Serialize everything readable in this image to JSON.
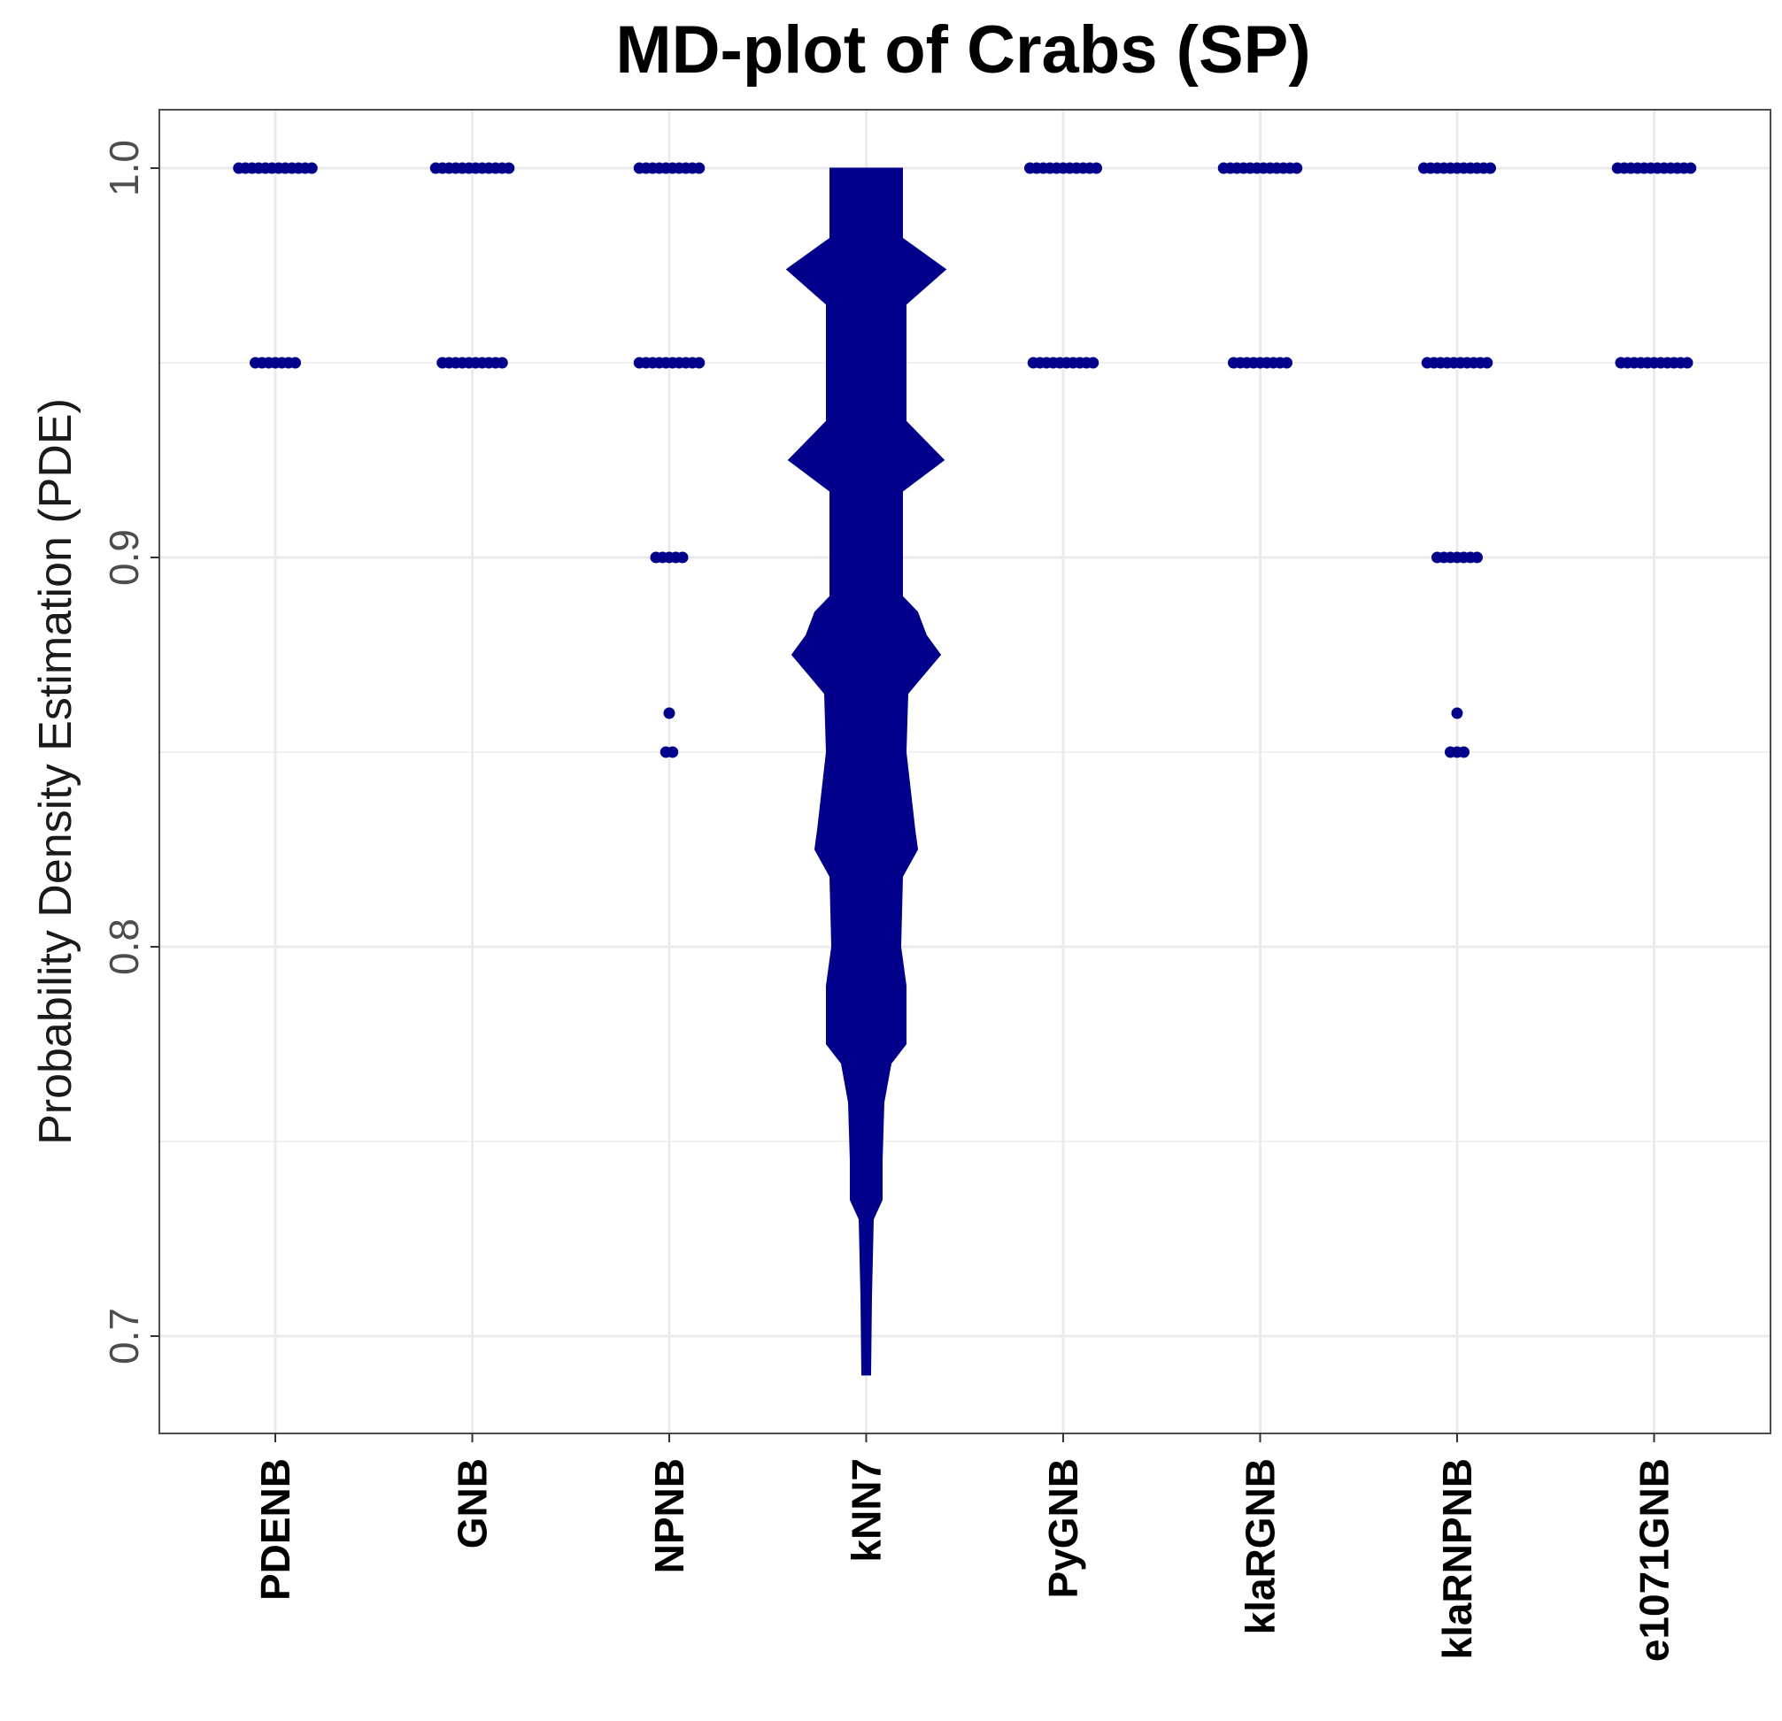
{
  "chart_data": {
    "type": "scatter",
    "title": "MD-plot of Crabs (SP)",
    "xlabel": "",
    "ylabel": "Probability Density Estimation (PDE)",
    "categories": [
      "PDENB",
      "GNB",
      "NPNB",
      "kNN7",
      "PyGNB",
      "klaRGNB",
      "klaRNPNB",
      "e1071GNB"
    ],
    "ylim": [
      0.675,
      1.015
    ],
    "yticks": [
      0.7,
      0.8,
      0.9,
      1.0
    ],
    "ytick_labels": [
      "0.7",
      "0.8",
      "0.9",
      "1.0"
    ],
    "grid": true,
    "legend": "none",
    "color": "#00008B",
    "series": [
      {
        "category": "PDENB",
        "points": [
          {
            "y": 1.0,
            "count": 12
          },
          {
            "y": 0.95,
            "count": 7
          }
        ]
      },
      {
        "category": "GNB",
        "points": [
          {
            "y": 1.0,
            "count": 12
          },
          {
            "y": 0.95,
            "count": 10
          }
        ]
      },
      {
        "category": "NPNB",
        "points": [
          {
            "y": 1.0,
            "count": 10
          },
          {
            "y": 0.95,
            "count": 10
          },
          {
            "y": 0.9,
            "count": 5
          },
          {
            "y": 0.86,
            "count": 1
          },
          {
            "y": 0.85,
            "count": 2
          }
        ]
      },
      {
        "category": "kNN7",
        "violin": [
          {
            "y": 1.0,
            "w": 0.41
          },
          {
            "y": 0.982,
            "w": 0.41
          },
          {
            "y": 0.974,
            "w": 0.9
          },
          {
            "y": 0.965,
            "w": 0.45
          },
          {
            "y": 0.935,
            "w": 0.45
          },
          {
            "y": 0.925,
            "w": 0.88
          },
          {
            "y": 0.917,
            "w": 0.41
          },
          {
            "y": 0.89,
            "w": 0.41
          },
          {
            "y": 0.886,
            "w": 0.58
          },
          {
            "y": 0.88,
            "w": 0.68
          },
          {
            "y": 0.875,
            "w": 0.84
          },
          {
            "y": 0.868,
            "w": 0.58
          },
          {
            "y": 0.865,
            "w": 0.47
          },
          {
            "y": 0.85,
            "w": 0.45
          },
          {
            "y": 0.83,
            "w": 0.55
          },
          {
            "y": 0.825,
            "w": 0.58
          },
          {
            "y": 0.818,
            "w": 0.41
          },
          {
            "y": 0.8,
            "w": 0.39
          },
          {
            "y": 0.79,
            "w": 0.45
          },
          {
            "y": 0.775,
            "w": 0.45
          },
          {
            "y": 0.77,
            "w": 0.28
          },
          {
            "y": 0.76,
            "w": 0.2
          },
          {
            "y": 0.745,
            "w": 0.18
          },
          {
            "y": 0.735,
            "w": 0.18
          },
          {
            "y": 0.73,
            "w": 0.08
          },
          {
            "y": 0.71,
            "w": 0.06
          },
          {
            "y": 0.69,
            "w": 0.05
          }
        ]
      },
      {
        "category": "PyGNB",
        "points": [
          {
            "y": 1.0,
            "count": 11
          },
          {
            "y": 0.95,
            "count": 10
          }
        ]
      },
      {
        "category": "klaRGNB",
        "points": [
          {
            "y": 1.0,
            "count": 12
          },
          {
            "y": 0.95,
            "count": 9
          }
        ]
      },
      {
        "category": "klaRNPNB",
        "points": [
          {
            "y": 1.0,
            "count": 11
          },
          {
            "y": 0.95,
            "count": 10
          },
          {
            "y": 0.9,
            "count": 7
          },
          {
            "y": 0.86,
            "count": 1
          },
          {
            "y": 0.85,
            "count": 3
          }
        ]
      },
      {
        "category": "e1071GNB",
        "points": [
          {
            "y": 1.0,
            "count": 12
          },
          {
            "y": 0.95,
            "count": 11
          }
        ]
      }
    ]
  }
}
